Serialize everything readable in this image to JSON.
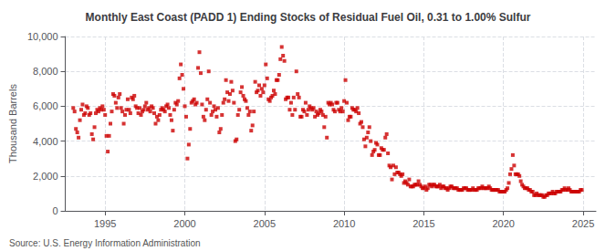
{
  "chart_data": {
    "type": "scatter",
    "title": "Monthly East Coast (PADD 1) Ending Stocks of Residual Fuel Oil, 0.31 to 1.00% Sulfur",
    "y_label": "Thousand Barrels",
    "annotations": [
      "Source: U.S. Energy Information Administration"
    ],
    "color": "#cc0000",
    "marker": "square",
    "grid": true,
    "xlim": [
      1992.5,
      2025.8
    ],
    "xticks": [
      1995,
      2000,
      2005,
      2010,
      2015,
      2020,
      2025
    ],
    "ylim": [
      0,
      10000
    ],
    "yticks": [
      0,
      {
        "value": 2000,
        "label": "2,000"
      },
      {
        "value": 4000,
        "label": "4,000"
      },
      {
        "value": 6000,
        "label": "6,000"
      },
      {
        "value": 8000,
        "label": "8,000"
      },
      {
        "value": 10000,
        "label": "10,000"
      }
    ],
    "x": [
      1993.0,
      1993.083,
      1993.167,
      1993.25,
      1993.333,
      1993.417,
      1993.5,
      1993.583,
      1993.667,
      1993.75,
      1993.833,
      1993.917,
      1994.0,
      1994.083,
      1994.167,
      1994.25,
      1994.333,
      1994.417,
      1994.5,
      1994.583,
      1994.667,
      1994.75,
      1994.833,
      1994.917,
      1995.0,
      1995.083,
      1995.167,
      1995.25,
      1995.333,
      1995.417,
      1995.5,
      1995.583,
      1995.667,
      1995.75,
      1995.833,
      1995.917,
      1996.0,
      1996.083,
      1996.167,
      1996.25,
      1996.333,
      1996.417,
      1996.5,
      1996.583,
      1996.667,
      1996.75,
      1996.833,
      1996.917,
      1997.0,
      1997.083,
      1997.167,
      1997.25,
      1997.333,
      1997.417,
      1997.5,
      1997.583,
      1997.667,
      1997.75,
      1997.833,
      1997.917,
      1998.0,
      1998.083,
      1998.167,
      1998.25,
      1998.333,
      1998.417,
      1998.5,
      1998.583,
      1998.667,
      1998.75,
      1998.833,
      1998.917,
      1999.0,
      1999.083,
      1999.167,
      1999.25,
      1999.333,
      1999.417,
      1999.5,
      1999.583,
      1999.667,
      1999.75,
      1999.833,
      1999.917,
      2000.0,
      2000.083,
      2000.167,
      2000.25,
      2000.333,
      2000.417,
      2000.5,
      2000.583,
      2000.667,
      2000.75,
      2000.833,
      2000.917,
      2001.0,
      2001.083,
      2001.167,
      2001.25,
      2001.333,
      2001.417,
      2001.5,
      2001.583,
      2001.667,
      2001.75,
      2001.833,
      2001.917,
      2002.0,
      2002.083,
      2002.167,
      2002.25,
      2002.333,
      2002.417,
      2002.5,
      2002.583,
      2002.667,
      2002.75,
      2002.833,
      2002.917,
      2003.0,
      2003.083,
      2003.167,
      2003.25,
      2003.333,
      2003.417,
      2003.5,
      2003.583,
      2003.667,
      2003.75,
      2003.833,
      2003.917,
      2004.0,
      2004.083,
      2004.167,
      2004.25,
      2004.333,
      2004.417,
      2004.5,
      2004.583,
      2004.667,
      2004.75,
      2004.833,
      2004.917,
      2005.0,
      2005.083,
      2005.167,
      2005.25,
      2005.333,
      2005.417,
      2005.5,
      2005.583,
      2005.667,
      2005.75,
      2005.833,
      2005.917,
      2006.0,
      2006.083,
      2006.167,
      2006.25,
      2006.333,
      2006.417,
      2006.5,
      2006.583,
      2006.667,
      2006.75,
      2006.833,
      2006.917,
      2007.0,
      2007.083,
      2007.167,
      2007.25,
      2007.333,
      2007.417,
      2007.5,
      2007.583,
      2007.667,
      2007.75,
      2007.833,
      2007.917,
      2008.0,
      2008.083,
      2008.167,
      2008.25,
      2008.333,
      2008.417,
      2008.5,
      2008.583,
      2008.667,
      2008.75,
      2008.833,
      2008.917,
      2009.0,
      2009.083,
      2009.167,
      2009.25,
      2009.333,
      2009.417,
      2009.5,
      2009.583,
      2009.667,
      2009.75,
      2009.833,
      2009.917,
      2010.0,
      2010.083,
      2010.167,
      2010.25,
      2010.333,
      2010.417,
      2010.5,
      2010.583,
      2010.667,
      2010.75,
      2010.833,
      2010.917,
      2011.0,
      2011.083,
      2011.167,
      2011.25,
      2011.333,
      2011.417,
      2011.5,
      2011.583,
      2011.667,
      2011.75,
      2011.833,
      2011.917,
      2012.0,
      2012.083,
      2012.167,
      2012.25,
      2012.333,
      2012.417,
      2012.5,
      2012.583,
      2012.667,
      2012.75,
      2012.833,
      2012.917,
      2013.0,
      2013.083,
      2013.167,
      2013.25,
      2013.333,
      2013.417,
      2013.5,
      2013.583,
      2013.667,
      2013.75,
      2013.833,
      2013.917,
      2014.0,
      2014.083,
      2014.167,
      2014.25,
      2014.333,
      2014.417,
      2014.5,
      2014.583,
      2014.667,
      2014.75,
      2014.833,
      2014.917,
      2015.0,
      2015.083,
      2015.167,
      2015.25,
      2015.333,
      2015.417,
      2015.5,
      2015.583,
      2015.667,
      2015.75,
      2015.833,
      2015.917,
      2016.0,
      2016.083,
      2016.167,
      2016.25,
      2016.333,
      2016.417,
      2016.5,
      2016.583,
      2016.667,
      2016.75,
      2016.833,
      2016.917,
      2017.0,
      2017.083,
      2017.167,
      2017.25,
      2017.333,
      2017.417,
      2017.5,
      2017.583,
      2017.667,
      2017.75,
      2017.833,
      2017.917,
      2018.0,
      2018.083,
      2018.167,
      2018.25,
      2018.333,
      2018.417,
      2018.5,
      2018.583,
      2018.667,
      2018.75,
      2018.833,
      2018.917,
      2019.0,
      2019.083,
      2019.167,
      2019.25,
      2019.333,
      2019.417,
      2019.5,
      2019.583,
      2019.667,
      2019.75,
      2019.833,
      2019.917,
      2020.0,
      2020.083,
      2020.167,
      2020.25,
      2020.333,
      2020.417,
      2020.5,
      2020.583,
      2020.667,
      2020.75,
      2020.833,
      2020.917,
      2021.0,
      2021.083,
      2021.167,
      2021.25,
      2021.333,
      2021.417,
      2021.5,
      2021.583,
      2021.667,
      2021.75,
      2021.833,
      2021.917,
      2022.0,
      2022.083,
      2022.167,
      2022.25,
      2022.333,
      2022.417,
      2022.5,
      2022.583,
      2022.667,
      2022.75,
      2022.833,
      2022.917,
      2023.0,
      2023.083,
      2023.167,
      2023.25,
      2023.333,
      2023.417,
      2023.5,
      2023.583,
      2023.667,
      2023.75,
      2023.833,
      2023.917,
      2024.0,
      2024.083,
      2024.167,
      2024.25,
      2024.333,
      2024.417,
      2024.5,
      2024.583,
      2024.667,
      2024.75,
      2024.833,
      2024.917
    ],
    "values": [
      5900,
      5700,
      4700,
      4500,
      4200,
      5200,
      5800,
      6100,
      5500,
      5600,
      6000,
      5900,
      5500,
      5600,
      4400,
      4100,
      4800,
      5600,
      5800,
      5700,
      5900,
      5800,
      6000,
      5800,
      5500,
      4300,
      3400,
      4300,
      5000,
      5700,
      6700,
      6600,
      6200,
      5900,
      6500,
      6700,
      5900,
      5700,
      5000,
      5500,
      5800,
      6400,
      5800,
      5600,
      6500,
      6400,
      6600,
      6000,
      5900,
      5600,
      5900,
      5500,
      5700,
      5800,
      6000,
      6200,
      5800,
      5900,
      5700,
      6000,
      5900,
      5600,
      5000,
      5400,
      5200,
      5500,
      5800,
      5900,
      5800,
      5700,
      6000,
      6100,
      5900,
      5500,
      5200,
      4600,
      5800,
      6200,
      6100,
      6300,
      7600,
      8400,
      7800,
      7000,
      6000,
      5400,
      3000,
      3800,
      4700,
      6200,
      6300,
      6400,
      6100,
      6200,
      8200,
      9100,
      7900,
      6100,
      5400,
      5200,
      5800,
      6400,
      8000,
      6200,
      5500,
      5700,
      6000,
      5800,
      5400,
      5900,
      4500,
      4700,
      5500,
      6200,
      6400,
      7500,
      6800,
      6300,
      6700,
      7400,
      6900,
      6200,
      4000,
      4100,
      5500,
      5800,
      6800,
      7100,
      6600,
      6400,
      6300,
      5900,
      5500,
      5700,
      4600,
      4900,
      5700,
      7400,
      6800,
      6900,
      7200,
      6600,
      7000,
      6800,
      7200,
      8400,
      7600,
      6400,
      6300,
      6500,
      6600,
      6900,
      6700,
      7500,
      7500,
      7800,
      8700,
      9400,
      8900,
      8600,
      6400,
      6500,
      6500,
      5800,
      6200,
      5500,
      6500,
      5800,
      8000,
      6700,
      6500,
      5400,
      5400,
      5800,
      5700,
      6200,
      5500,
      5800,
      6000,
      5900,
      5800,
      5900,
      5400,
      5700,
      5500,
      5600,
      5800,
      5700,
      5500,
      4800,
      5400,
      4200,
      6200,
      6100,
      6200,
      6100,
      5800,
      5700,
      6200,
      6200,
      5800,
      5700,
      5900,
      5700,
      6300,
      7500,
      6200,
      5200,
      5400,
      5400,
      5900,
      5800,
      5800,
      5700,
      5900,
      5600,
      5000,
      5100,
      4800,
      4100,
      3700,
      4200,
      4500,
      4800,
      4000,
      3200,
      3400,
      3500,
      3900,
      3800,
      3200,
      3200,
      3600,
      3500,
      3500,
      4200,
      4400,
      3300,
      2600,
      2500,
      1800,
      2600,
      2100,
      2500,
      2200,
      2200,
      2100,
      2000,
      2100,
      1600,
      1700,
      1600,
      1500,
      1800,
      1400,
      1400,
      1400,
      1500,
      1500,
      1500,
      1700,
      1500,
      1400,
      1300,
      1300,
      1400,
      1200,
      1300,
      1500,
      1500,
      1400,
      1500,
      1500,
      1400,
      1400,
      1400,
      1500,
      1300,
      1400,
      1400,
      1300,
      1300,
      1200,
      1300,
      1400,
      1400,
      1300,
      1300,
      1300,
      1300,
      1200,
      1200,
      1200,
      1200,
      1300,
      1300,
      1300,
      1200,
      1200,
      1200,
      1200,
      1300,
      1200,
      1200,
      1200,
      1300,
      1300,
      1300,
      1400,
      1300,
      1300,
      1300,
      1300,
      1400,
      1300,
      1200,
      1200,
      1200,
      1200,
      1200,
      1200,
      1100,
      1100,
      1100,
      1100,
      1100,
      1200,
      1300,
      1600,
      2100,
      2400,
      3200,
      2600,
      2100,
      2100,
      2100,
      2000,
      1700,
      1500,
      1400,
      1300,
      1300,
      1300,
      1200,
      1200,
      1100,
      1100,
      900,
      900,
      1000,
      900,
      900,
      900,
      900,
      800,
      800,
      900,
      900,
      1000,
      1000,
      1000,
      1100,
      1000,
      1000,
      1100,
      1100,
      1100,
      1100,
      1200,
      1200,
      1300,
      1200,
      1200,
      1300,
      1200,
      1100,
      1100,
      1100,
      1100,
      1100,
      1100,
      1100,
      1200,
      1200
    ]
  }
}
